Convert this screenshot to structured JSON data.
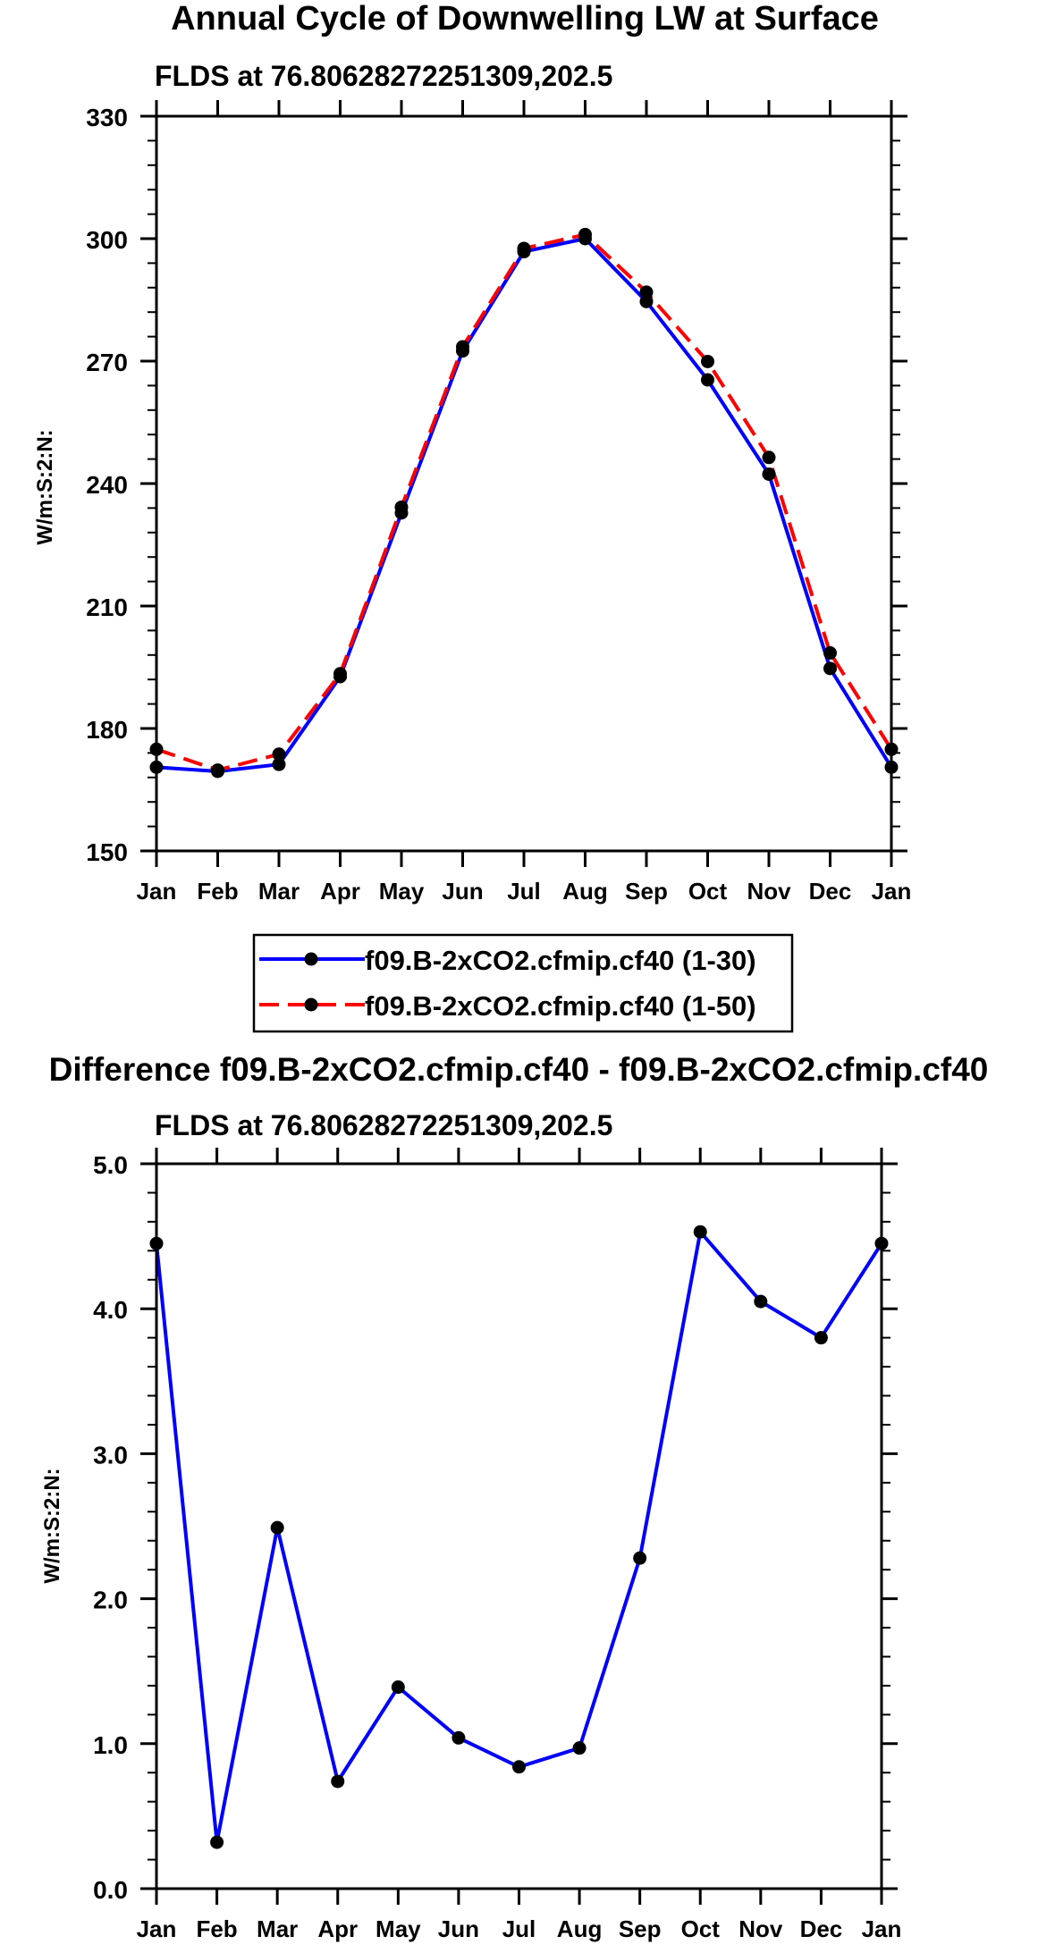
{
  "chart_data": [
    {
      "type": "line",
      "title": "Annual Cycle of Downwelling LW at Surface",
      "subtitle": "FLDS at 76.80628272251309,202.5",
      "xlabel": "",
      "ylabel": "W/m:S:2:N:",
      "categories": [
        "Jan",
        "Feb",
        "Mar",
        "Apr",
        "May",
        "Jun",
        "Jul",
        "Aug",
        "Sep",
        "Oct",
        "Nov",
        "Dec",
        "Jan"
      ],
      "ylim": [
        150,
        330
      ],
      "yticks": [
        150,
        180,
        210,
        240,
        270,
        300,
        330
      ],
      "ytick_labels": [
        "150",
        "180",
        "210",
        "240",
        "270",
        "300",
        "330"
      ],
      "grid": false,
      "legend_position": "below",
      "series": [
        {
          "name": "f09.B-2xCO2.cfmip.cf40 (1-30)",
          "color": "#0000ff",
          "dash": "solid",
          "values": [
            170.5,
            169.5,
            171.2,
            192.7,
            232.8,
            272.5,
            296.8,
            300.0,
            284.6,
            265.4,
            242.3,
            194.7,
            170.5
          ]
        },
        {
          "name": "f09.B-2xCO2.cfmip.cf40 (1-50)",
          "color": "#ff0000",
          "dash": "dashed",
          "values": [
            174.9,
            169.8,
            173.7,
            193.4,
            234.2,
            273.5,
            297.6,
            301.0,
            286.9,
            269.9,
            246.4,
            198.5,
            174.9
          ]
        }
      ]
    },
    {
      "type": "line",
      "title": "Difference f09.B-2xCO2.cfmip.cf40 - f09.B-2xCO2.cfmip.cf40",
      "subtitle": "FLDS at 76.80628272251309,202.5",
      "xlabel": "",
      "ylabel": "W/m:S:2:N:",
      "categories": [
        "Jan",
        "Feb",
        "Mar",
        "Apr",
        "May",
        "Jun",
        "Jul",
        "Aug",
        "Sep",
        "Oct",
        "Nov",
        "Dec",
        "Jan"
      ],
      "ylim": [
        0.0,
        5.0
      ],
      "yticks": [
        0,
        1,
        2,
        3,
        4,
        5
      ],
      "ytick_labels": [
        "0.0",
        "1.0",
        "2.0",
        "3.0",
        "4.0",
        "5.0"
      ],
      "grid": false,
      "series": [
        {
          "name": "Difference",
          "color": "#0000ff",
          "dash": "solid",
          "values": [
            4.45,
            0.32,
            2.49,
            0.74,
            1.39,
            1.04,
            0.84,
            0.97,
            2.28,
            4.53,
            4.05,
            3.8,
            4.45
          ]
        }
      ]
    }
  ]
}
